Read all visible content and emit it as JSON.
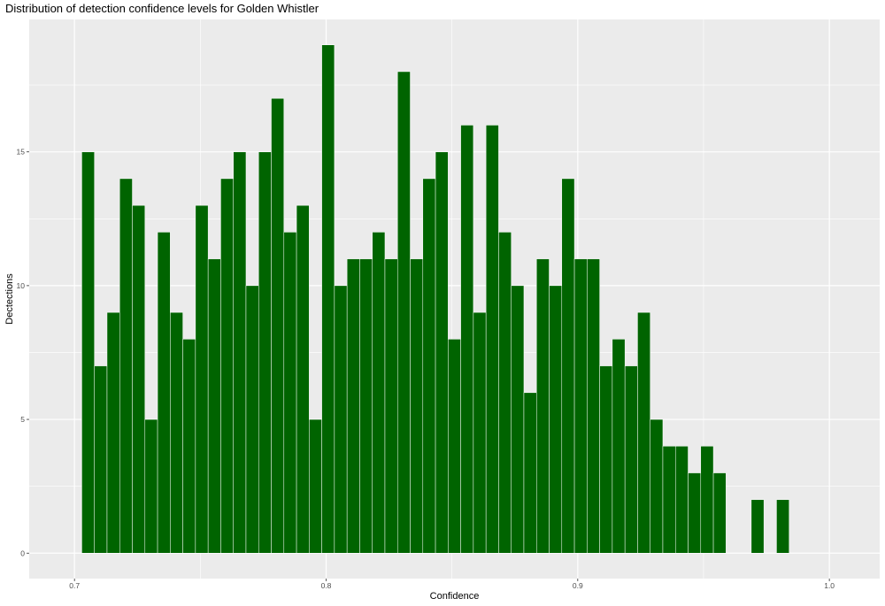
{
  "chart_data": {
    "type": "bar",
    "title": "Distribution of detection confidence levels for Golden Whistler",
    "xlabel": "Confidence",
    "ylabel": "Dectections",
    "xlim": [
      0.682,
      1.02
    ],
    "ylim": [
      -0.95,
      19.95
    ],
    "x_ticks": [
      0.7,
      0.8,
      0.9,
      1.0
    ],
    "x_tick_labels": [
      "0.7",
      "0.8",
      "0.9",
      "1.0"
    ],
    "y_ticks": [
      0,
      5,
      10,
      15
    ],
    "y_tick_labels": [
      "0",
      "5",
      "10",
      "15"
    ],
    "bin_width": 0.00502,
    "first_bin_start": 0.7029,
    "values": [
      15,
      7,
      9,
      14,
      13,
      5,
      12,
      9,
      8,
      13,
      11,
      14,
      15,
      10,
      15,
      17,
      12,
      13,
      5,
      19,
      10,
      11,
      11,
      12,
      11,
      18,
      11,
      14,
      15,
      8,
      16,
      9,
      16,
      12,
      10,
      6,
      11,
      10,
      14,
      11,
      11,
      7,
      8,
      7,
      9,
      5,
      4,
      4,
      3,
      4,
      3,
      0,
      0,
      2,
      0,
      2
    ],
    "bar_fill": "#006400",
    "bar_outline": "#ffffff",
    "panel_background": "#ebebeb",
    "grid": true,
    "legend": "none"
  }
}
